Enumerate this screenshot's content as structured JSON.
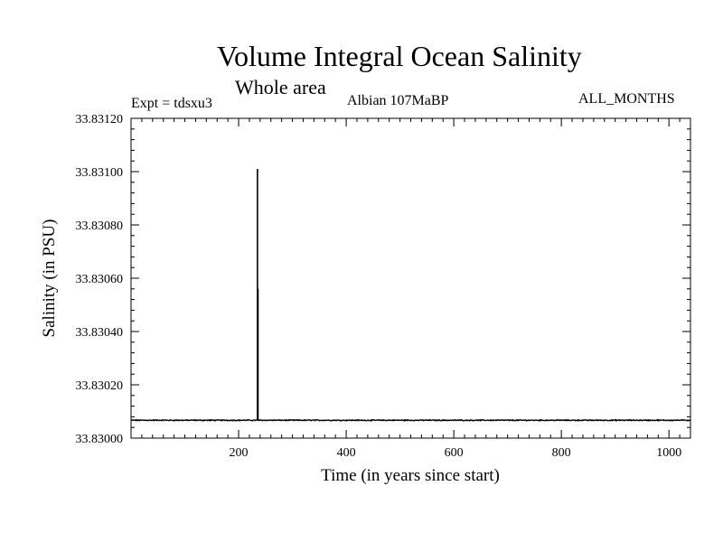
{
  "chart_data": {
    "type": "line",
    "title": "Volume Integral Ocean Salinity",
    "subtitle": "Whole area",
    "annotations": {
      "experiment": "Expt = tdsxu3",
      "period": "Albian   107MaBP",
      "months": "ALL_MONTHS"
    },
    "xlabel": "Time (in years since start)",
    "ylabel": "Salinity (in PSU)",
    "xlim": [
      0,
      1040
    ],
    "ylim": [
      33.83,
      33.8312
    ],
    "x_ticks": [
      200,
      400,
      600,
      800,
      1000
    ],
    "y_ticks": [
      "33.83000",
      "33.83020",
      "33.83040",
      "33.83060",
      "33.83080",
      "33.83100",
      "33.83120"
    ],
    "series": [
      {
        "name": "salinity",
        "baseline": 33.830067,
        "noise_amplitude": 1.5e-06,
        "spikes": [
          {
            "x": 235,
            "y": 33.83101
          },
          {
            "x": 236,
            "y": 33.83056
          }
        ]
      }
    ]
  }
}
